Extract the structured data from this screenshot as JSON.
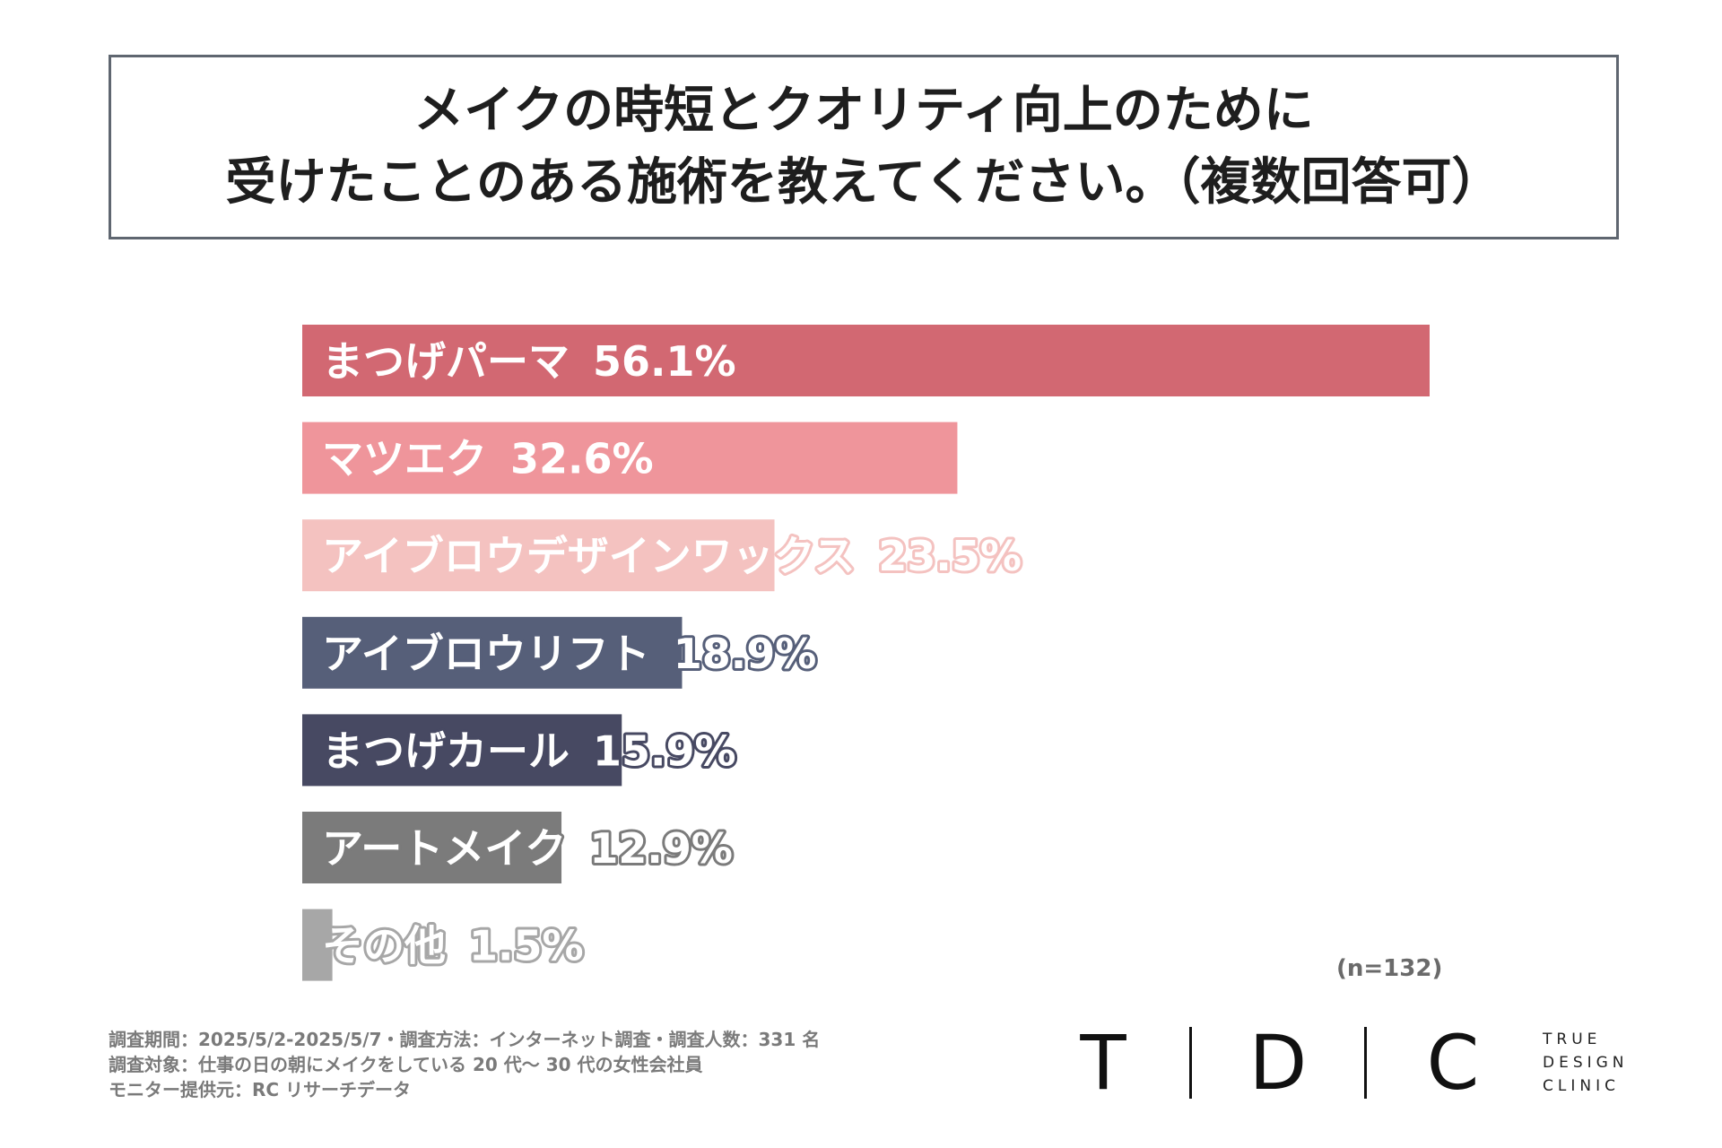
{
  "title": {
    "line1": "メイクの時短とクオリティ向上のために",
    "line2": "受けたことのある施術を教えてください。（複数回答可）"
  },
  "chart_data": {
    "type": "bar",
    "orientation": "horizontal",
    "xlim": [
      0,
      56.1
    ],
    "categories": [
      "まつげパーマ",
      "マツエク",
      "アイブロウデザインワックス",
      "アイブロウリフト",
      "まつげカール",
      "アートメイク",
      "その他"
    ],
    "values": [
      56.1,
      32.6,
      23.5,
      18.9,
      15.9,
      12.9,
      1.5
    ],
    "value_labels": [
      "56.1%",
      "32.6%",
      "23.5%",
      "18.9%",
      "15.9%",
      "12.9%",
      "1.5%"
    ],
    "colors": [
      "#d26872",
      "#ef959b",
      "#f4c2c0",
      "#565f79",
      "#474962",
      "#7b7b7b",
      "#a7a7a7"
    ]
  },
  "sample_size": "(n=132)",
  "footnotes": [
    "調査期間：2025/5/2-2025/5/7・調査方法：インターネット調査・調査人数：331 名",
    "調査対象：仕事の日の朝にメイクをしている 20 代〜 30 代の女性会社員",
    "モニター提供元：RC リサーチデータ"
  ],
  "logo": {
    "letters": [
      "T",
      "D",
      "C"
    ],
    "words": [
      "TRUE",
      "DESIGN",
      "CLINIC"
    ]
  }
}
